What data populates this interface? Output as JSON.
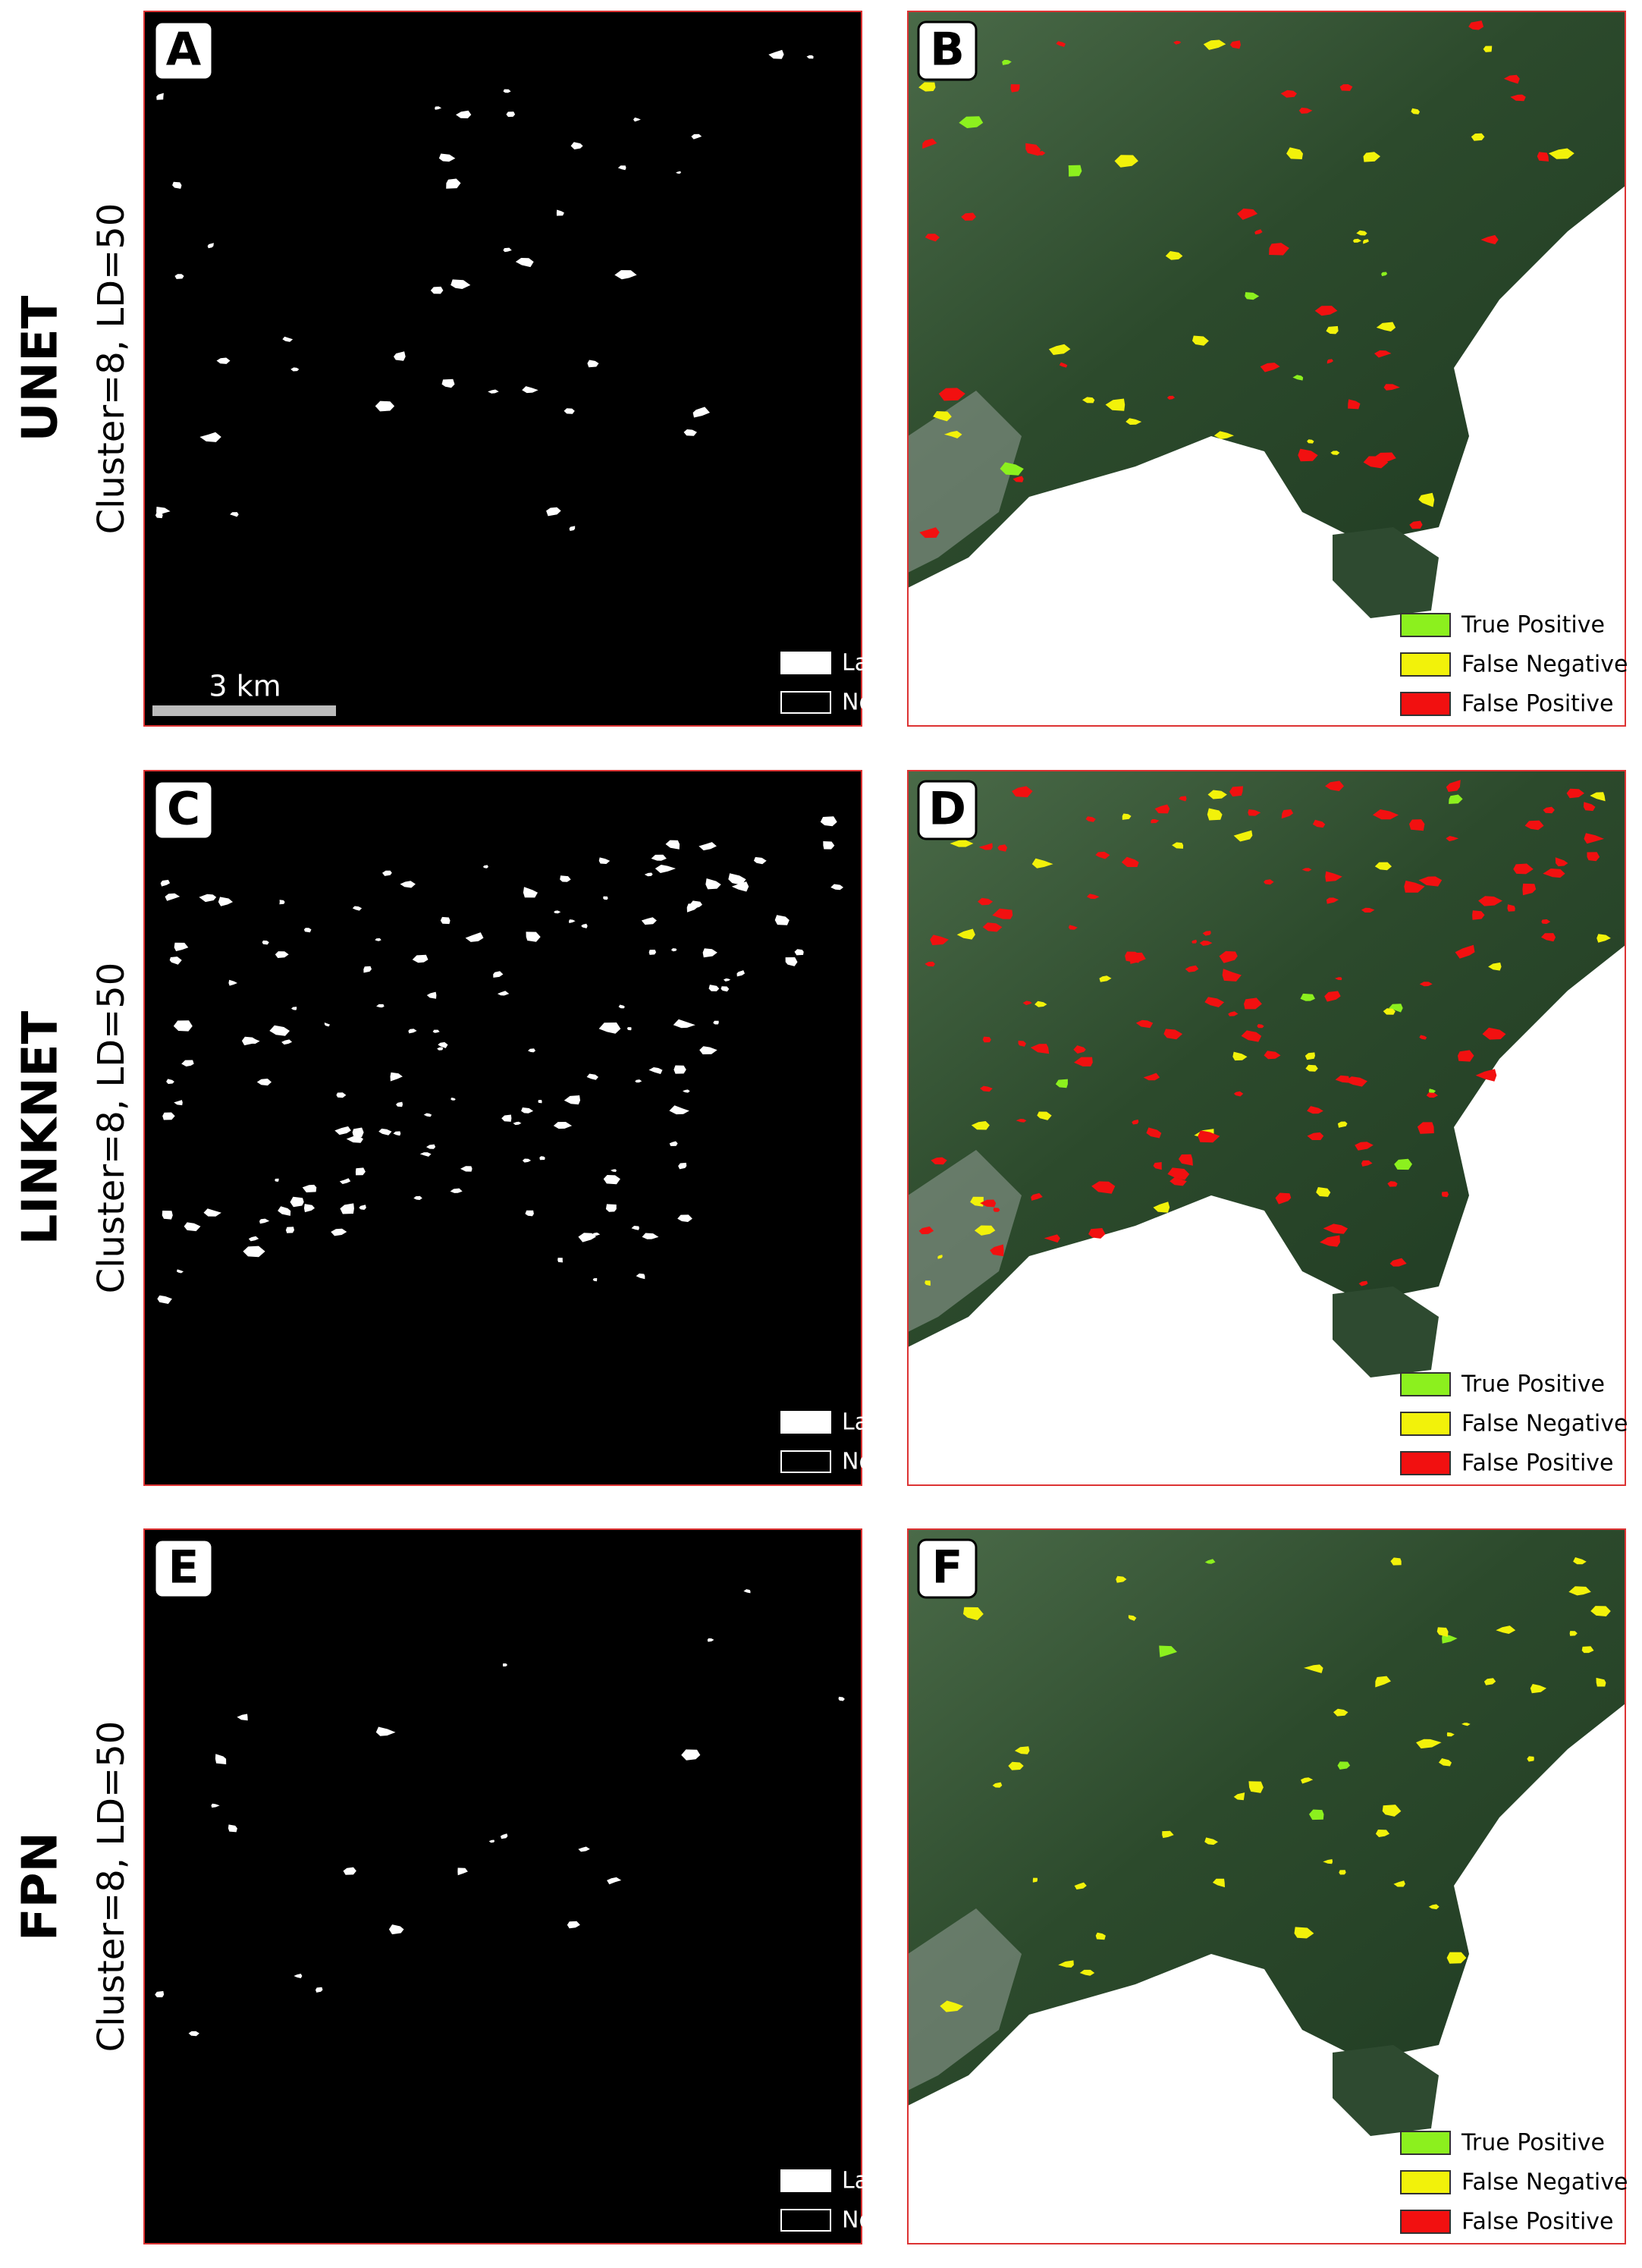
{
  "rows": [
    {
      "model": "UNET",
      "setting": "Cluster=8, LD=50",
      "prediction_panel": {
        "label": "A",
        "legend": [
          "Landslide",
          "Non-landslide"
        ]
      },
      "comparison_panel": {
        "label": "B",
        "legend": [
          "True Positive",
          "False Negative",
          "False Positive"
        ]
      }
    },
    {
      "model": "LINKNET",
      "setting": "Cluster=8, LD=50",
      "prediction_panel": {
        "label": "C",
        "legend": [
          "Landslide",
          "Non-landslide"
        ]
      },
      "comparison_panel": {
        "label": "D",
        "legend": [
          "True Positive",
          "False Negative",
          "False Positive"
        ]
      }
    },
    {
      "model": "FPN",
      "setting": "Cluster=8, LD=50",
      "prediction_panel": {
        "label": "E",
        "legend": [
          "Landslide",
          "Non-landslide"
        ]
      },
      "comparison_panel": {
        "label": "F",
        "legend": [
          "True Positive",
          "False Negative",
          "False Positive"
        ]
      }
    }
  ],
  "scale_bar": "3 km"
}
